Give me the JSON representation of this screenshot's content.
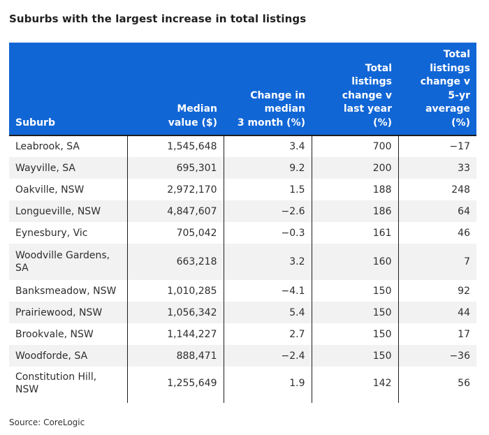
{
  "title": "Suburbs with the largest increase in total listings",
  "source": "Source: CoreLogic",
  "colors": {
    "header_background": "#1166d6",
    "header_text": "#ffffff",
    "row_alt_background": "#f2f2f2"
  },
  "chart_data": {
    "type": "table",
    "title": "Suburbs with the largest increase in total listings",
    "columns": [
      "Suburb",
      "Median value ($)",
      "Change in median 3 month (%)",
      "Total listings change v last year (%)",
      "Total listings change v 5-yr average (%)"
    ],
    "rows": [
      [
        "Leabrook, SA",
        "1,545,648",
        "3.4",
        "700",
        "−17"
      ],
      [
        "Wayville, SA",
        "695,301",
        "9.2",
        "200",
        "33"
      ],
      [
        "Oakville, NSW",
        "2,972,170",
        "1.5",
        "188",
        "248"
      ],
      [
        "Longueville, NSW",
        "4,847,607",
        "−2.6",
        "186",
        "64"
      ],
      [
        "Eynesbury, Vic",
        "705,042",
        "−0.3",
        "161",
        "46"
      ],
      [
        "Woodville Gardens, SA",
        "663,218",
        "3.2",
        "160",
        "7"
      ],
      [
        "Banksmeadow, NSW",
        "1,010,285",
        "−4.1",
        "150",
        "92"
      ],
      [
        "Prairiewood, NSW",
        "1,056,342",
        "5.4",
        "150",
        "44"
      ],
      [
        "Brookvale, NSW",
        "1,144,227",
        "2.7",
        "150",
        "17"
      ],
      [
        "Woodforde, SA",
        "888,471",
        "−2.4",
        "150",
        "−36"
      ],
      [
        "Constitution Hill, NSW",
        "1,255,649",
        "1.9",
        "142",
        "56"
      ]
    ],
    "source": "Source: CoreLogic"
  }
}
